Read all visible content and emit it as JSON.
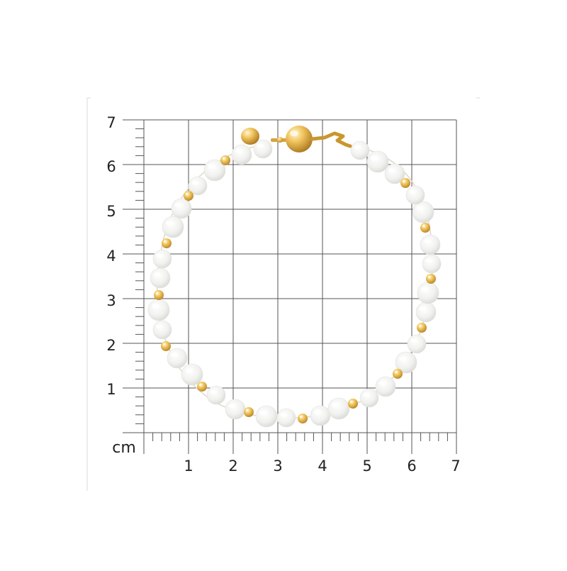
{
  "figure": {
    "unit_label": "cm",
    "x_tick_labels": [
      "1",
      "2",
      "3",
      "4",
      "5",
      "6",
      "7"
    ],
    "y_tick_labels": [
      "1",
      "2",
      "3",
      "4",
      "5",
      "6",
      "7"
    ],
    "grid_range_cm": [
      0,
      7
    ],
    "minor_ticks_per_cm": 5,
    "colors": {
      "grid": "#555555",
      "frame": "#d9d9d9",
      "pearl": "#f4f4f2",
      "gold": "#e7b74a"
    }
  },
  "bracelet": {
    "subject": "pearl-and-gold-bead-bracelet",
    "pearl_count": 32,
    "gold_bead_count": 15,
    "clasp": "gold-ball-clasp"
  }
}
